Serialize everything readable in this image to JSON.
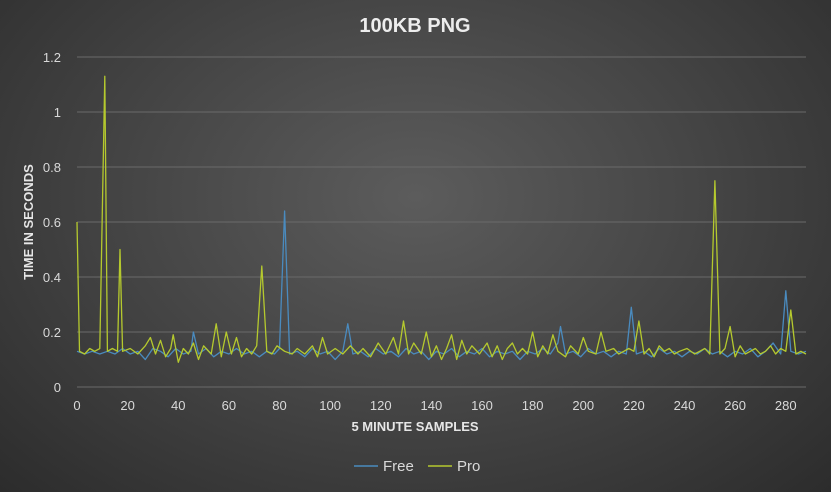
{
  "chart_data": {
    "type": "line",
    "title": "100KB  PNG",
    "xlabel": "5 MINUTE SAMPLES",
    "ylabel": "TIME IN SECONDS",
    "xlim": [
      0,
      288
    ],
    "ylim": [
      0,
      1.2
    ],
    "x_ticks": [
      "0",
      "20",
      "40",
      "60",
      "80",
      "100",
      "120",
      "140",
      "160",
      "180",
      "200",
      "220",
      "240",
      "260",
      "280"
    ],
    "y_ticks": [
      "0",
      "0.2",
      "0.4",
      "0.6",
      "0.8",
      "1",
      "1.2"
    ],
    "grid": true,
    "legend_position": "bottom",
    "series": [
      {
        "name": "Free",
        "color": "#4a8bbf",
        "points": [
          [
            0,
            0.13
          ],
          [
            3,
            0.12
          ],
          [
            6,
            0.13
          ],
          [
            9,
            0.12
          ],
          [
            12,
            0.13
          ],
          [
            15,
            0.12
          ],
          [
            18,
            0.14
          ],
          [
            21,
            0.12
          ],
          [
            24,
            0.13
          ],
          [
            27,
            0.1
          ],
          [
            30,
            0.14
          ],
          [
            33,
            0.13
          ],
          [
            36,
            0.11
          ],
          [
            39,
            0.14
          ],
          [
            42,
            0.12
          ],
          [
            45,
            0.13
          ],
          [
            46,
            0.2
          ],
          [
            48,
            0.12
          ],
          [
            51,
            0.14
          ],
          [
            54,
            0.11
          ],
          [
            57,
            0.13
          ],
          [
            60,
            0.12
          ],
          [
            63,
            0.14
          ],
          [
            66,
            0.12
          ],
          [
            69,
            0.13
          ],
          [
            72,
            0.11
          ],
          [
            75,
            0.13
          ],
          [
            78,
            0.12
          ],
          [
            80,
            0.14
          ],
          [
            82,
            0.64
          ],
          [
            84,
            0.12
          ],
          [
            87,
            0.13
          ],
          [
            90,
            0.11
          ],
          [
            93,
            0.14
          ],
          [
            96,
            0.12
          ],
          [
            99,
            0.13
          ],
          [
            102,
            0.1
          ],
          [
            105,
            0.13
          ],
          [
            107,
            0.23
          ],
          [
            109,
            0.12
          ],
          [
            112,
            0.13
          ],
          [
            115,
            0.11
          ],
          [
            118,
            0.14
          ],
          [
            121,
            0.12
          ],
          [
            124,
            0.13
          ],
          [
            127,
            0.11
          ],
          [
            130,
            0.14
          ],
          [
            133,
            0.12
          ],
          [
            136,
            0.13
          ],
          [
            139,
            0.1
          ],
          [
            142,
            0.13
          ],
          [
            145,
            0.12
          ],
          [
            148,
            0.14
          ],
          [
            151,
            0.11
          ],
          [
            154,
            0.13
          ],
          [
            157,
            0.12
          ],
          [
            160,
            0.14
          ],
          [
            163,
            0.11
          ],
          [
            166,
            0.13
          ],
          [
            169,
            0.12
          ],
          [
            172,
            0.13
          ],
          [
            175,
            0.1
          ],
          [
            178,
            0.13
          ],
          [
            181,
            0.12
          ],
          [
            184,
            0.14
          ],
          [
            187,
            0.12
          ],
          [
            190,
            0.16
          ],
          [
            191,
            0.22
          ],
          [
            193,
            0.12
          ],
          [
            196,
            0.13
          ],
          [
            199,
            0.11
          ],
          [
            202,
            0.14
          ],
          [
            205,
            0.12
          ],
          [
            208,
            0.13
          ],
          [
            211,
            0.11
          ],
          [
            214,
            0.13
          ],
          [
            217,
            0.12
          ],
          [
            219,
            0.29
          ],
          [
            221,
            0.12
          ],
          [
            224,
            0.13
          ],
          [
            227,
            0.11
          ],
          [
            230,
            0.14
          ],
          [
            233,
            0.12
          ],
          [
            236,
            0.13
          ],
          [
            239,
            0.11
          ],
          [
            242,
            0.13
          ],
          [
            245,
            0.12
          ],
          [
            248,
            0.14
          ],
          [
            251,
            0.12
          ],
          [
            254,
            0.13
          ],
          [
            257,
            0.11
          ],
          [
            260,
            0.13
          ],
          [
            263,
            0.12
          ],
          [
            266,
            0.14
          ],
          [
            269,
            0.11
          ],
          [
            272,
            0.13
          ],
          [
            275,
            0.16
          ],
          [
            278,
            0.12
          ],
          [
            280,
            0.35
          ],
          [
            282,
            0.13
          ],
          [
            285,
            0.12
          ],
          [
            288,
            0.13
          ]
        ]
      },
      {
        "name": "Pro",
        "color": "#b5c92e",
        "points": [
          [
            0,
            0.6
          ],
          [
            1,
            0.13
          ],
          [
            3,
            0.12
          ],
          [
            5,
            0.14
          ],
          [
            7,
            0.13
          ],
          [
            9,
            0.14
          ],
          [
            11,
            1.13
          ],
          [
            12,
            0.13
          ],
          [
            14,
            0.14
          ],
          [
            16,
            0.13
          ],
          [
            17,
            0.5
          ],
          [
            18,
            0.13
          ],
          [
            21,
            0.14
          ],
          [
            24,
            0.12
          ],
          [
            27,
            0.15
          ],
          [
            29,
            0.18
          ],
          [
            31,
            0.12
          ],
          [
            33,
            0.17
          ],
          [
            35,
            0.11
          ],
          [
            37,
            0.14
          ],
          [
            38,
            0.19
          ],
          [
            40,
            0.09
          ],
          [
            42,
            0.14
          ],
          [
            44,
            0.12
          ],
          [
            46,
            0.16
          ],
          [
            48,
            0.1
          ],
          [
            50,
            0.15
          ],
          [
            53,
            0.12
          ],
          [
            55,
            0.23
          ],
          [
            57,
            0.11
          ],
          [
            59,
            0.2
          ],
          [
            61,
            0.12
          ],
          [
            63,
            0.18
          ],
          [
            65,
            0.11
          ],
          [
            67,
            0.14
          ],
          [
            69,
            0.12
          ],
          [
            71,
            0.15
          ],
          [
            73,
            0.44
          ],
          [
            75,
            0.13
          ],
          [
            77,
            0.12
          ],
          [
            79,
            0.15
          ],
          [
            82,
            0.13
          ],
          [
            85,
            0.12
          ],
          [
            87,
            0.14
          ],
          [
            90,
            0.12
          ],
          [
            93,
            0.15
          ],
          [
            95,
            0.11
          ],
          [
            97,
            0.18
          ],
          [
            99,
            0.12
          ],
          [
            102,
            0.14
          ],
          [
            105,
            0.12
          ],
          [
            108,
            0.15
          ],
          [
            111,
            0.12
          ],
          [
            113,
            0.14
          ],
          [
            116,
            0.11
          ],
          [
            119,
            0.16
          ],
          [
            122,
            0.12
          ],
          [
            125,
            0.18
          ],
          [
            127,
            0.12
          ],
          [
            129,
            0.24
          ],
          [
            131,
            0.12
          ],
          [
            133,
            0.16
          ],
          [
            136,
            0.12
          ],
          [
            138,
            0.2
          ],
          [
            140,
            0.11
          ],
          [
            142,
            0.15
          ],
          [
            144,
            0.1
          ],
          [
            146,
            0.14
          ],
          [
            148,
            0.19
          ],
          [
            150,
            0.1
          ],
          [
            152,
            0.17
          ],
          [
            154,
            0.12
          ],
          [
            156,
            0.15
          ],
          [
            159,
            0.12
          ],
          [
            162,
            0.16
          ],
          [
            164,
            0.11
          ],
          [
            166,
            0.15
          ],
          [
            168,
            0.1
          ],
          [
            170,
            0.14
          ],
          [
            172,
            0.16
          ],
          [
            174,
            0.12
          ],
          [
            176,
            0.14
          ],
          [
            178,
            0.12
          ],
          [
            180,
            0.2
          ],
          [
            182,
            0.11
          ],
          [
            184,
            0.15
          ],
          [
            186,
            0.12
          ],
          [
            188,
            0.19
          ],
          [
            190,
            0.13
          ],
          [
            193,
            0.11
          ],
          [
            195,
            0.15
          ],
          [
            198,
            0.12
          ],
          [
            200,
            0.18
          ],
          [
            202,
            0.13
          ],
          [
            205,
            0.12
          ],
          [
            207,
            0.2
          ],
          [
            209,
            0.13
          ],
          [
            212,
            0.14
          ],
          [
            214,
            0.12
          ],
          [
            216,
            0.13
          ],
          [
            218,
            0.14
          ],
          [
            220,
            0.13
          ],
          [
            222,
            0.24
          ],
          [
            224,
            0.12
          ],
          [
            226,
            0.14
          ],
          [
            228,
            0.11
          ],
          [
            230,
            0.15
          ],
          [
            232,
            0.13
          ],
          [
            234,
            0.14
          ],
          [
            236,
            0.12
          ],
          [
            238,
            0.13
          ],
          [
            241,
            0.14
          ],
          [
            244,
            0.12
          ],
          [
            246,
            0.13
          ],
          [
            248,
            0.14
          ],
          [
            250,
            0.12
          ],
          [
            252,
            0.75
          ],
          [
            254,
            0.12
          ],
          [
            256,
            0.14
          ],
          [
            258,
            0.22
          ],
          [
            260,
            0.11
          ],
          [
            262,
            0.15
          ],
          [
            264,
            0.12
          ],
          [
            266,
            0.13
          ],
          [
            268,
            0.14
          ],
          [
            270,
            0.12
          ],
          [
            272,
            0.13
          ],
          [
            274,
            0.15
          ],
          [
            276,
            0.12
          ],
          [
            278,
            0.14
          ],
          [
            280,
            0.13
          ],
          [
            282,
            0.28
          ],
          [
            284,
            0.12
          ],
          [
            286,
            0.13
          ],
          [
            288,
            0.12
          ]
        ]
      }
    ]
  }
}
